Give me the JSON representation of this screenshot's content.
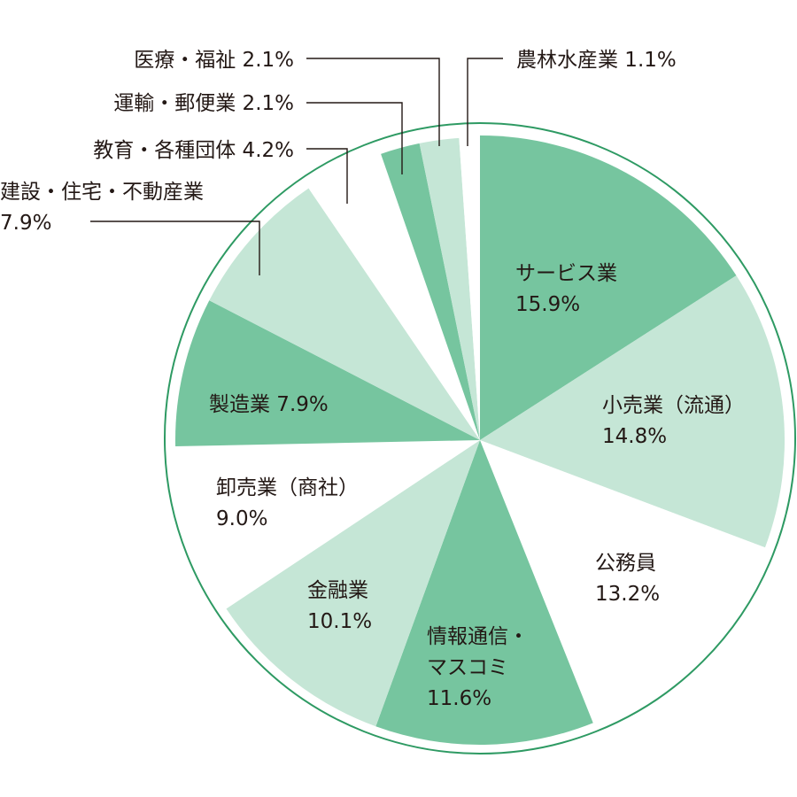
{
  "chart_data": {
    "type": "pie",
    "title": "",
    "start_angle_deg": 0,
    "direction": "clockwise",
    "slices": [
      {
        "label_lines": [
          "サービス業",
          "15.9%"
        ],
        "value": 15.9,
        "color": "#76c59f"
      },
      {
        "label_lines": [
          "小売業（流通）",
          "14.8%"
        ],
        "value": 14.8,
        "color": "#c5e6d6"
      },
      {
        "label_lines": [
          "公務員",
          "13.2%"
        ],
        "value": 13.2,
        "color": "#ffffff"
      },
      {
        "label_lines": [
          "情報通信・",
          "マスコミ",
          "11.6%"
        ],
        "value": 11.6,
        "color": "#76c59f"
      },
      {
        "label_lines": [
          "金融業",
          "10.1%"
        ],
        "value": 10.1,
        "color": "#c5e6d6"
      },
      {
        "label_lines": [
          "卸売業（商社）",
          "9.0%"
        ],
        "value": 9.0,
        "color": "#ffffff"
      },
      {
        "label_lines": [
          "製造業 7.9%"
        ],
        "value": 7.9,
        "color": "#76c59f"
      },
      {
        "label_lines": [
          "建設・住宅・不動産業",
          "7.9%"
        ],
        "value": 7.9,
        "color": "#c5e6d6"
      },
      {
        "label_lines": [
          "教育・各種団体 4.2%"
        ],
        "value": 4.2,
        "color": "#ffffff"
      },
      {
        "label_lines": [
          "運輸・郵便業 2.1%"
        ],
        "value": 2.1,
        "color": "#76c59f"
      },
      {
        "label_lines": [
          "医療・福祉 2.1%"
        ],
        "value": 2.1,
        "color": "#c5e6d6"
      },
      {
        "label_lines": [
          "農林水産業 1.1%"
        ],
        "value": 1.1,
        "color": "#ffffff"
      }
    ],
    "outline_color": "#2e9a63",
    "legend": "none"
  }
}
